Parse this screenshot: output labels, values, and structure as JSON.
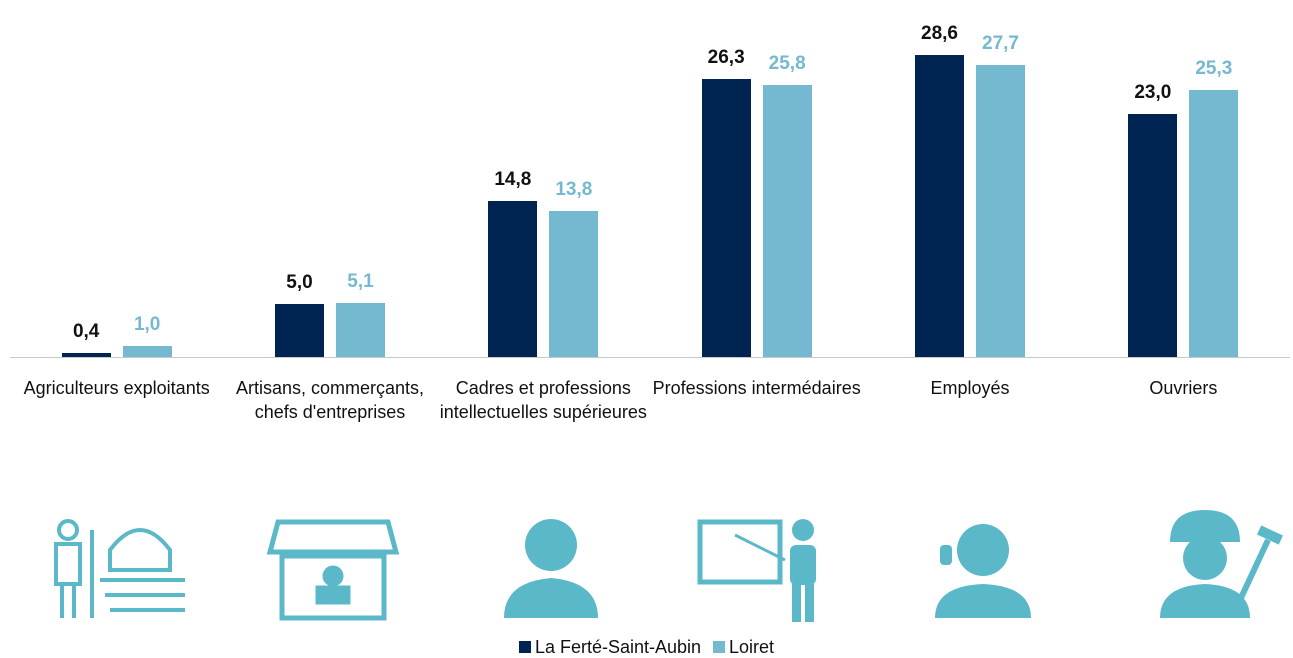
{
  "chart_data": {
    "type": "bar",
    "categories": [
      "Agriculteurs exploitants",
      "Artisans, commerçants, chefs d'entreprises",
      "Cadres et professions intellectuelles supérieures",
      "Professions intermédaires",
      "Employés",
      "Ouvriers"
    ],
    "series": [
      {
        "name": "La Ferté-Saint-Aubin",
        "color": "#002451",
        "values": [
          0.4,
          5.0,
          14.8,
          26.3,
          28.6,
          23.0
        ],
        "value_labels": [
          "0,4",
          "5,0",
          "14,8",
          "26,3",
          "28,6",
          "23,0"
        ]
      },
      {
        "name": "Loiret",
        "color": "#74b9cf",
        "values": [
          1.0,
          5.1,
          13.8,
          25.8,
          27.7,
          25.3
        ],
        "value_labels": [
          "1,0",
          "5,1",
          "13,8",
          "25,8",
          "27,7",
          "25,3"
        ]
      }
    ],
    "legend": "bottom"
  }
}
